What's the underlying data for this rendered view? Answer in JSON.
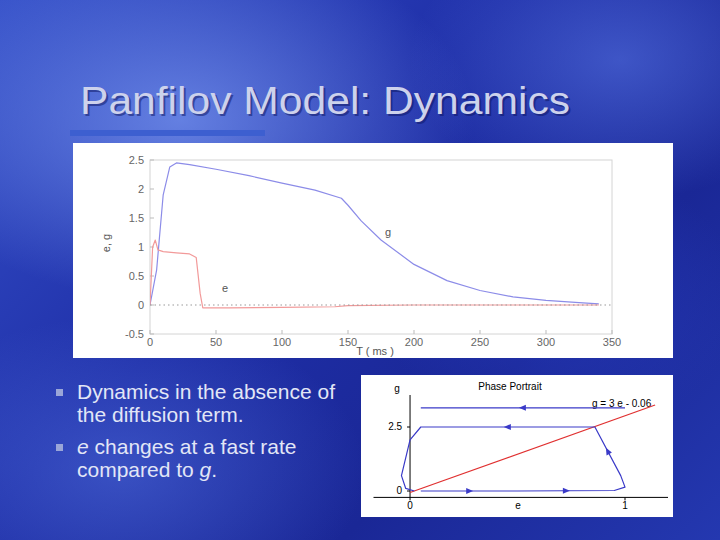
{
  "slide": {
    "title": "Panfilov Model: Dynamics",
    "bullets": [
      {
        "runs": [
          {
            "text": "Dynamics in the absence of the diffusion term."
          }
        ]
      },
      {
        "runs": [
          {
            "text": "e",
            "italic": true
          },
          {
            "text": " changes at a fast rate compared to "
          },
          {
            "text": "g",
            "italic": true
          },
          {
            "text": "."
          }
        ]
      }
    ]
  },
  "chart_data": [
    {
      "type": "line",
      "xlabel": "T ( ms )",
      "ylabel": "e, g",
      "xlim": [
        0,
        350
      ],
      "xticks": [
        0,
        50,
        100,
        150,
        200,
        250,
        300,
        350
      ],
      "ylim": [
        -0.5,
        2.5
      ],
      "yticks": [
        -0.5,
        0,
        0.5,
        1,
        1.5,
        2,
        2.5
      ],
      "grid": false,
      "series": [
        {
          "name": "g",
          "color": "#8c8ce8",
          "x": [
            0,
            5,
            10,
            15,
            20,
            30,
            50,
            75,
            100,
            125,
            145,
            150,
            160,
            175,
            200,
            225,
            250,
            275,
            300,
            325,
            340
          ],
          "values": [
            0,
            0.6,
            1.9,
            2.38,
            2.45,
            2.42,
            2.34,
            2.23,
            2.1,
            1.98,
            1.84,
            1.72,
            1.45,
            1.12,
            0.7,
            0.42,
            0.25,
            0.14,
            0.08,
            0.04,
            0.02
          ]
        },
        {
          "name": "e",
          "color": "#f29a9a",
          "x": [
            0,
            2,
            4,
            6,
            10,
            20,
            30,
            35,
            38,
            40,
            60,
            100,
            140,
            150,
            200,
            250,
            300,
            340
          ],
          "values": [
            0,
            1.0,
            1.12,
            0.95,
            0.92,
            0.9,
            0.88,
            0.82,
            0.2,
            -0.05,
            -0.05,
            -0.04,
            -0.03,
            -0.01,
            0,
            0,
            0,
            0
          ]
        },
        {
          "color": "#999999",
          "line_style": "dotted",
          "x": [
            0,
            350
          ],
          "values": [
            0,
            0
          ]
        }
      ]
    },
    {
      "type": "line",
      "title": "Phase Portrait",
      "xlabel": "e",
      "ylabel": "g",
      "annotation": "g = 3 e - 0.06",
      "xlim": [
        -0.17,
        1.2
      ],
      "xticks": [
        0,
        1
      ],
      "ylim": [
        -0.25,
        3.75
      ],
      "yticks": [
        0,
        2.5
      ],
      "grid": false,
      "series": [
        {
          "color": "#e03030",
          "x": [
            0,
            1.14
          ],
          "values": [
            -0.06,
            3.36
          ]
        },
        {
          "color": "#3a3ac8",
          "marker": "arrow",
          "x": [
            0.05,
            0.5,
            0.95,
            1.0,
            0.98,
            0.86,
            0.05,
            0.0,
            -0.04,
            -0.02,
            0.02
          ],
          "values": [
            0,
            0,
            0.02,
            0.15,
            0.6,
            2.5,
            2.5,
            2.0,
            0.6,
            0.1,
            0
          ]
        },
        {
          "color": "#3a3ac8",
          "marker": "arrow",
          "x": [
            1.0,
            0.05
          ],
          "values": [
            3.25,
            3.25
          ]
        }
      ]
    }
  ]
}
